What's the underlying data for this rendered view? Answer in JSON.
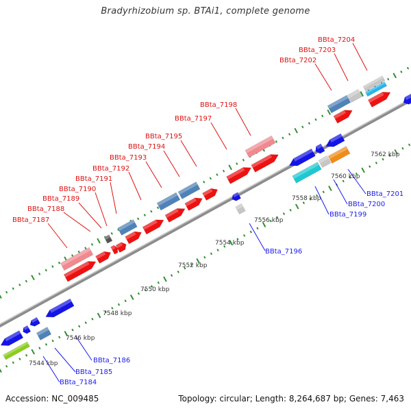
{
  "title": "Bradyrhizobium sp. BTAi1, complete genome",
  "footer": {
    "accession": "Accession: NC_009485",
    "genome_info": "Topology: circular; Length: 8,264,687 bp; Genes: 7,463"
  },
  "colors": {
    "forward_label": "#dd1111",
    "reverse_label": "#1a1aee",
    "backbone": "#8c8c8c",
    "tick": "#2f8f2f"
  },
  "kbp_labels": [
    "7544 kbp",
    "7546 kbp",
    "7548 kbp",
    "7550 kbp",
    "7552 kbp",
    "7554 kbp",
    "7556 kbp",
    "7558 kbp",
    "7560 kbp",
    "7562 kbp"
  ],
  "genes_forward": [
    {
      "name": "BBta_7187"
    },
    {
      "name": "BBta_7188"
    },
    {
      "name": "BBta_7189"
    },
    {
      "name": "BBta_7190"
    },
    {
      "name": "BBta_7191"
    },
    {
      "name": "BBta_7192"
    },
    {
      "name": "BBta_7193"
    },
    {
      "name": "BBta_7194"
    },
    {
      "name": "BBta_7195"
    },
    {
      "name": "BBta_7197"
    },
    {
      "name": "BBta_7198"
    },
    {
      "name": "BBta_7202"
    },
    {
      "name": "BBta_7203"
    },
    {
      "name": "BBta_7204"
    }
  ],
  "genes_reverse": [
    {
      "name": "BBta_7184"
    },
    {
      "name": "BBta_7185"
    },
    {
      "name": "BBta_7186"
    },
    {
      "name": "BBta_7196"
    },
    {
      "name": "BBta_7199"
    },
    {
      "name": "BBta_7200"
    },
    {
      "name": "BBta_7201"
    }
  ]
}
